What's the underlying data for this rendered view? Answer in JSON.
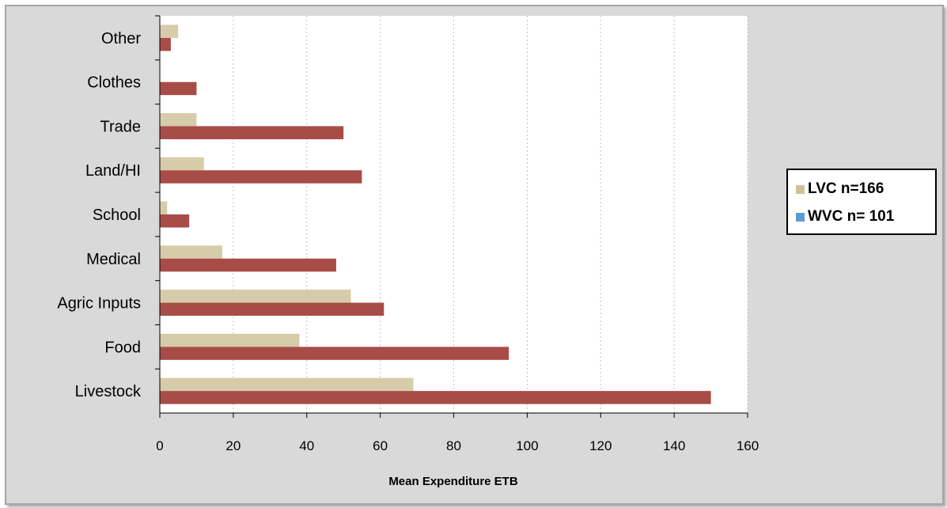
{
  "chart_data": {
    "type": "bar",
    "orientation": "horizontal",
    "categories": [
      "Livestock",
      "Food",
      "Agric Inputs",
      "Medical",
      "School",
      "Land/HI",
      "Trade",
      "Clothes",
      "Other"
    ],
    "series": [
      {
        "name": "LVC n=166",
        "color": "#d6ccaa",
        "legend_color": "#cfc29b",
        "values": [
          69,
          38,
          52,
          17,
          2,
          12,
          10,
          0,
          5
        ]
      },
      {
        "name": "WVC n= 101",
        "color": "#a84c48",
        "legend_color": "#5b9bd5",
        "values": [
          150,
          95,
          61,
          48,
          8,
          55,
          50,
          10,
          3
        ]
      }
    ],
    "xlabel": "Mean Expenditure ETB",
    "xlim": [
      0,
      160
    ],
    "xticks": [
      0,
      20,
      40,
      60,
      80,
      100,
      120,
      140,
      160
    ],
    "gridlines": "vertical-dashed",
    "legend_position": "right"
  }
}
